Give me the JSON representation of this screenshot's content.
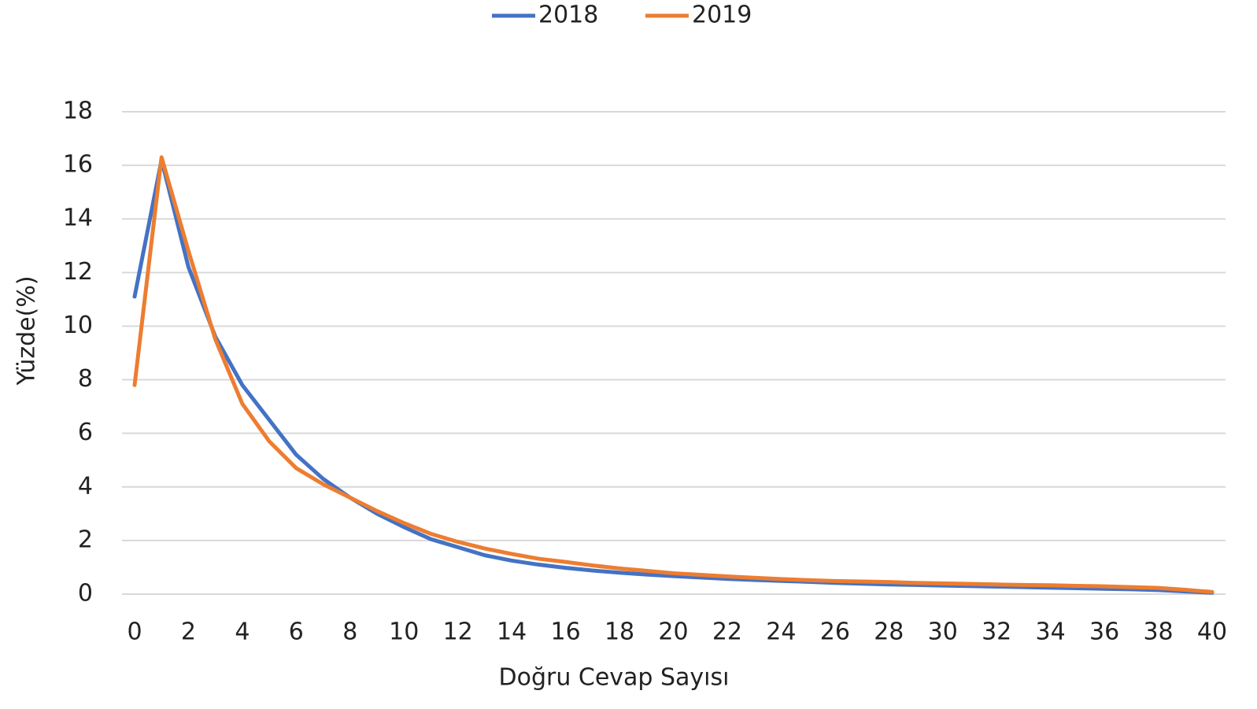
{
  "chart_data": {
    "type": "line",
    "x": [
      0,
      1,
      2,
      3,
      4,
      5,
      6,
      7,
      8,
      9,
      10,
      11,
      12,
      13,
      14,
      15,
      16,
      17,
      18,
      19,
      20,
      21,
      22,
      23,
      24,
      25,
      26,
      27,
      28,
      29,
      30,
      31,
      32,
      33,
      34,
      35,
      36,
      37,
      38,
      39,
      40
    ],
    "series": [
      {
        "name": "2018",
        "color": "#4472c4",
        "values": [
          11.1,
          16.2,
          12.2,
          9.6,
          7.8,
          6.5,
          5.2,
          4.3,
          3.6,
          3.0,
          2.5,
          2.05,
          1.75,
          1.45,
          1.25,
          1.1,
          0.98,
          0.88,
          0.8,
          0.73,
          0.67,
          0.62,
          0.57,
          0.53,
          0.49,
          0.46,
          0.42,
          0.39,
          0.36,
          0.34,
          0.32,
          0.3,
          0.28,
          0.26,
          0.24,
          0.22,
          0.2,
          0.18,
          0.15,
          0.1,
          0.05
        ]
      },
      {
        "name": "2019",
        "color": "#ed7d31",
        "values": [
          7.8,
          16.3,
          12.8,
          9.5,
          7.1,
          5.7,
          4.7,
          4.1,
          3.6,
          3.1,
          2.65,
          2.25,
          1.95,
          1.7,
          1.5,
          1.32,
          1.2,
          1.07,
          0.96,
          0.87,
          0.78,
          0.72,
          0.66,
          0.61,
          0.56,
          0.52,
          0.49,
          0.47,
          0.45,
          0.42,
          0.4,
          0.38,
          0.36,
          0.34,
          0.33,
          0.31,
          0.29,
          0.26,
          0.23,
          0.16,
          0.08
        ]
      }
    ],
    "xlim": [
      0,
      40
    ],
    "xticks": [
      0,
      2,
      4,
      6,
      8,
      10,
      12,
      14,
      16,
      18,
      20,
      22,
      24,
      26,
      28,
      30,
      32,
      34,
      36,
      38,
      40
    ],
    "ylim": [
      0,
      18
    ],
    "yticks": [
      0,
      2,
      4,
      6,
      8,
      10,
      12,
      14,
      16,
      18
    ],
    "xlabel": "Doğru Cevap Sayısı",
    "ylabel": "Yüzde(%)",
    "grid": true,
    "legend": "top"
  }
}
